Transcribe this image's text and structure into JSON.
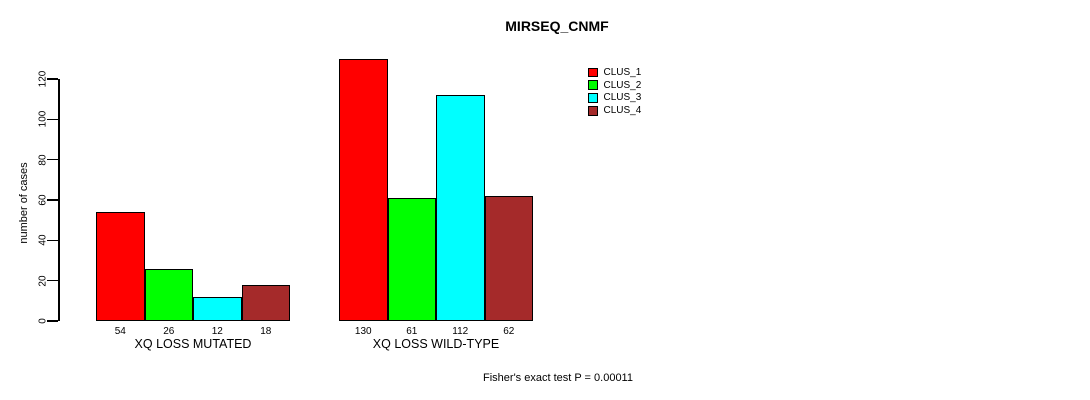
{
  "chart_data": {
    "type": "bar",
    "title": "MIRSEQ_CNMF",
    "ylabel": "number of cases",
    "ylim": [
      0,
      120
    ],
    "yticks": [
      0,
      20,
      40,
      60,
      80,
      100,
      120
    ],
    "grid": false,
    "legend_position": "top-right",
    "categories": [
      "XQ LOSS MUTATED",
      "XQ LOSS WILD-TYPE"
    ],
    "series": [
      {
        "name": "CLUS_1",
        "color": "#ff0000",
        "values": [
          54,
          130
        ]
      },
      {
        "name": "CLUS_2",
        "color": "#00ff00",
        "values": [
          26,
          61
        ]
      },
      {
        "name": "CLUS_3",
        "color": "#00ffff",
        "values": [
          12,
          112
        ]
      },
      {
        "name": "CLUS_4",
        "color": "#a52a2a",
        "values": [
          18,
          62
        ]
      }
    ],
    "groups": [
      {
        "label": "XQ LOSS MUTATED",
        "values": [
          54,
          26,
          12,
          18
        ]
      },
      {
        "label": "XQ LOSS WILD-TYPE",
        "values": [
          130,
          61,
          112,
          62
        ]
      }
    ],
    "bar_value_labels": [
      [
        "54",
        "26",
        "12",
        "18"
      ],
      [
        "130",
        "61",
        "112",
        "62"
      ]
    ],
    "footnote": "Fisher's exact test P = 0.00011"
  }
}
